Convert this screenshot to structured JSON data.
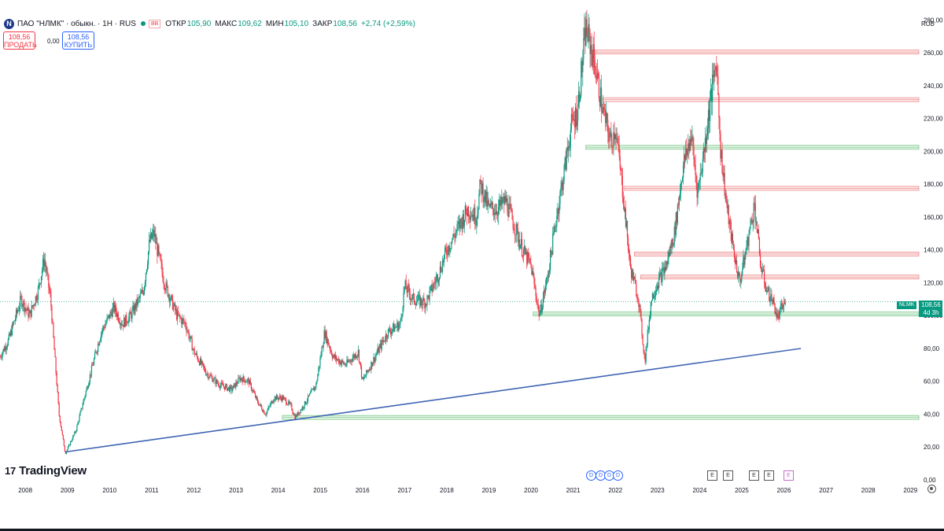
{
  "header": {
    "logo_letter": "N",
    "symbol": "ПАО \"НЛМК\" · обыкн. · 1Н · RUS",
    "tag": "ВВ",
    "ohlc": [
      {
        "label": "ОТКР",
        "value": "105,90"
      },
      {
        "label": "МАКС",
        "value": "109,62"
      },
      {
        "label": "МИН",
        "value": "105,10"
      },
      {
        "label": "ЗАКР",
        "value": "108,56"
      }
    ],
    "change": "+2,74 (+2,59%)"
  },
  "trade": {
    "sell_price": "108,56",
    "sell_label": "ПРОДАТЬ",
    "spread": "0,00",
    "buy_price": "108,56",
    "buy_label": "КУПИТЬ"
  },
  "price_scale": {
    "currency": "RUB"
  },
  "price_tag": {
    "ticker": "NLMK",
    "price": "108,56",
    "countdown": "4d 3h"
  },
  "branding": {
    "logo_mark": "17",
    "name": "TradingView"
  },
  "events": {
    "dividends": [
      "D",
      "D",
      "D",
      "D"
    ],
    "earnings": [
      "E",
      "E",
      "E",
      "E"
    ],
    "upcoming": "E"
  },
  "colors": {
    "up": "#089981",
    "down": "#f23645",
    "trend": "#3f64b4",
    "support": "#7ec88a",
    "resistance": "#f08a8a"
  },
  "chart_data": {
    "type": "candlestick",
    "title": "ПАО \"НЛМК\" · обыкн. · 1Н",
    "currency": "RUB",
    "ylim": [
      0,
      285
    ],
    "y_ticks": [
      0,
      20,
      40,
      60,
      80,
      100,
      120,
      140,
      160,
      180,
      200,
      220,
      240,
      260,
      280
    ],
    "y_tick_labels": [
      "0,00",
      "20,00",
      "40,00",
      "60,00",
      "80,00",
      "100,00",
      "120,00",
      "140,00",
      "160,00",
      "180,00",
      "200,00",
      "220,00",
      "240,00",
      "260,00",
      "280,00"
    ],
    "x_ticks": [
      2008,
      2009,
      2010,
      2011,
      2012,
      2013,
      2014,
      2015,
      2016,
      2017,
      2018,
      2019,
      2020,
      2021,
      2022,
      2023,
      2024,
      2025,
      2026,
      2027,
      2028,
      2029
    ],
    "xlim": [
      2007.4,
      2029.2
    ],
    "price_path": [
      [
        2007.4,
        75
      ],
      [
        2007.6,
        85
      ],
      [
        2007.9,
        110
      ],
      [
        2008.1,
        100
      ],
      [
        2008.3,
        115
      ],
      [
        2008.45,
        135
      ],
      [
        2008.6,
        110
      ],
      [
        2008.8,
        40
      ],
      [
        2008.95,
        16
      ],
      [
        2009.2,
        30
      ],
      [
        2009.5,
        60
      ],
      [
        2009.8,
        90
      ],
      [
        2010.1,
        105
      ],
      [
        2010.3,
        95
      ],
      [
        2010.5,
        100
      ],
      [
        2010.8,
        115
      ],
      [
        2010.95,
        145
      ],
      [
        2011.05,
        150
      ],
      [
        2011.3,
        120
      ],
      [
        2011.6,
        100
      ],
      [
        2011.8,
        95
      ],
      [
        2012.0,
        78
      ],
      [
        2012.3,
        65
      ],
      [
        2012.6,
        58
      ],
      [
        2012.9,
        55
      ],
      [
        2013.1,
        62
      ],
      [
        2013.3,
        60
      ],
      [
        2013.5,
        48
      ],
      [
        2013.7,
        40
      ],
      [
        2013.9,
        50
      ],
      [
        2014.1,
        50
      ],
      [
        2014.3,
        45
      ],
      [
        2014.4,
        38
      ],
      [
        2014.6,
        45
      ],
      [
        2014.9,
        58
      ],
      [
        2015.1,
        90
      ],
      [
        2015.3,
        75
      ],
      [
        2015.6,
        70
      ],
      [
        2015.9,
        78
      ],
      [
        2016.0,
        60
      ],
      [
        2016.3,
        75
      ],
      [
        2016.6,
        90
      ],
      [
        2016.9,
        95
      ],
      [
        2017.0,
        118
      ],
      [
        2017.2,
        110
      ],
      [
        2017.5,
        108
      ],
      [
        2017.8,
        125
      ],
      [
        2018.0,
        140
      ],
      [
        2018.2,
        150
      ],
      [
        2018.5,
        165
      ],
      [
        2018.7,
        160
      ],
      [
        2018.8,
        180
      ],
      [
        2019.0,
        165
      ],
      [
        2019.2,
        165
      ],
      [
        2019.4,
        170
      ],
      [
        2019.6,
        155
      ],
      [
        2019.8,
        140
      ],
      [
        2020.0,
        130
      ],
      [
        2020.2,
        100
      ],
      [
        2020.4,
        125
      ],
      [
        2020.6,
        160
      ],
      [
        2020.8,
        190
      ],
      [
        2020.95,
        215
      ],
      [
        2021.1,
        225
      ],
      [
        2021.3,
        275
      ],
      [
        2021.5,
        255
      ],
      [
        2021.7,
        225
      ],
      [
        2021.9,
        205
      ],
      [
        2022.0,
        215
      ],
      [
        2022.2,
        170
      ],
      [
        2022.35,
        130
      ],
      [
        2022.55,
        110
      ],
      [
        2022.7,
        72
      ],
      [
        2022.85,
        110
      ],
      [
        2023.0,
        120
      ],
      [
        2023.2,
        130
      ],
      [
        2023.4,
        150
      ],
      [
        2023.6,
        190
      ],
      [
        2023.8,
        210
      ],
      [
        2023.95,
        175
      ],
      [
        2024.1,
        200
      ],
      [
        2024.25,
        230
      ],
      [
        2024.4,
        255
      ],
      [
        2024.5,
        200
      ],
      [
        2024.65,
        165
      ],
      [
        2024.8,
        140
      ],
      [
        2024.95,
        120
      ],
      [
        2025.1,
        140
      ],
      [
        2025.3,
        168
      ],
      [
        2025.45,
        130
      ],
      [
        2025.6,
        115
      ],
      [
        2025.75,
        108
      ],
      [
        2025.85,
        98
      ],
      [
        2025.95,
        105
      ],
      [
        2026.05,
        108.56
      ]
    ],
    "levels": [
      {
        "price": 260.5,
        "from": 2021.55,
        "kind": "resistance"
      },
      {
        "price": 231.5,
        "from": 2021.7,
        "kind": "resistance"
      },
      {
        "price": 202.5,
        "from": 2021.3,
        "kind": "support"
      },
      {
        "price": 177.5,
        "from": 2022.2,
        "kind": "resistance"
      },
      {
        "price": 137.5,
        "from": 2022.45,
        "kind": "resistance"
      },
      {
        "price": 123.5,
        "from": 2022.6,
        "kind": "resistance"
      },
      {
        "price": 101,
        "from": 2020.05,
        "kind": "support"
      },
      {
        "price": 38,
        "from": 2014.1,
        "kind": "support"
      }
    ],
    "trendline": {
      "from": [
        2008.95,
        17
      ],
      "to": [
        2026.4,
        80
      ]
    },
    "last_price": 108.56
  }
}
